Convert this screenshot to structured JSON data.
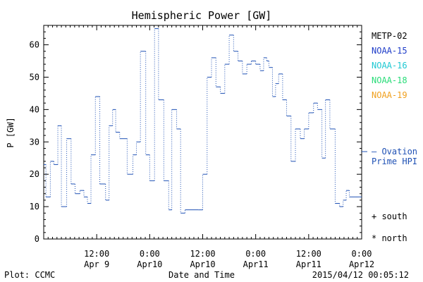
{
  "chart_data": {
    "type": "line",
    "title": "Hemispheric Power [GW]",
    "ylabel": "P [GW]",
    "xlabel": "Date and Time",
    "ylim": [
      0,
      66
    ],
    "xlim_hours": [
      0,
      72
    ],
    "yticks": [
      0,
      10,
      20,
      30,
      40,
      50,
      60
    ],
    "xticks": [
      {
        "hour": 12,
        "time": "12:00",
        "date": "Apr 9"
      },
      {
        "hour": 24,
        "time": "0:00",
        "date": "Apr10"
      },
      {
        "hour": 36,
        "time": "12:00",
        "date": "Apr10"
      },
      {
        "hour": 48,
        "time": "0:00",
        "date": "Apr11"
      },
      {
        "hour": 60,
        "time": "12:00",
        "date": "Apr11"
      },
      {
        "hour": 72,
        "time": "0:00",
        "date": "Apr12"
      }
    ],
    "legend": [
      {
        "name": "METP-02",
        "color": "#000000"
      },
      {
        "name": "NOAA-15",
        "color": "#1e3cc8"
      },
      {
        "name": "NOAA-16",
        "color": "#1ec8d2"
      },
      {
        "name": "NOAA-18",
        "color": "#28dc78"
      },
      {
        "name": "NOAA-19",
        "color": "#f0a01e"
      }
    ],
    "model_label_line1": "— Ovation",
    "model_label_line2": "Prime HPI",
    "model_color": "#1e50b4",
    "model_value": 27,
    "symbol_south": "+ south",
    "symbol_north": "* north",
    "series": [
      {
        "name": "Ovation Prime HPI",
        "color": "#1e50b4",
        "x": [
          0,
          0.5,
          1.5,
          2.3,
          3.2,
          4.0,
          5.2,
          6.2,
          7.1,
          8.2,
          9.1,
          9.9,
          10.7,
          11.7,
          12.7,
          14.0,
          14.8,
          15.6,
          16.3,
          17.2,
          18.9,
          20.2,
          21.0,
          21.9,
          23.1,
          24.0,
          25.1,
          26.0,
          27.2,
          28.3,
          29.0,
          30.1,
          31.0,
          32.0,
          35.0,
          36.0,
          37.0,
          38.0,
          39.0,
          40.0,
          41.0,
          42.0,
          43.0,
          44.0,
          45.0,
          46.0,
          47.0,
          48.0,
          49.0,
          49.8,
          50.5,
          51.0,
          51.8,
          52.5,
          53.2,
          54.1,
          55.0,
          56.0,
          57.0,
          58.1,
          59.0,
          60.0,
          61.1,
          62.0,
          63.0,
          63.8,
          64.8,
          66.0,
          67.0,
          67.8,
          68.5,
          69.2,
          70.0,
          70.8,
          71.4,
          72.0
        ],
        "y": [
          23,
          13,
          24,
          23,
          35,
          10,
          31,
          17,
          14,
          15,
          13,
          11,
          26,
          44,
          17,
          12,
          35,
          40,
          33,
          31,
          20,
          26,
          30,
          58,
          26,
          18,
          65,
          43,
          18,
          9,
          40,
          34,
          8,
          9,
          9,
          20,
          50,
          56,
          47,
          45,
          54,
          63,
          58,
          55,
          51,
          54,
          55,
          54,
          52,
          56,
          55,
          53,
          44,
          48,
          51,
          43,
          38,
          24,
          34,
          31,
          34,
          39,
          42,
          40,
          25,
          43,
          34,
          11,
          10,
          12,
          15,
          13,
          13,
          13,
          13,
          13
        ]
      }
    ],
    "plot_source": "Plot: CCMC",
    "timestamp": "2015/04/12 00:05:12"
  }
}
